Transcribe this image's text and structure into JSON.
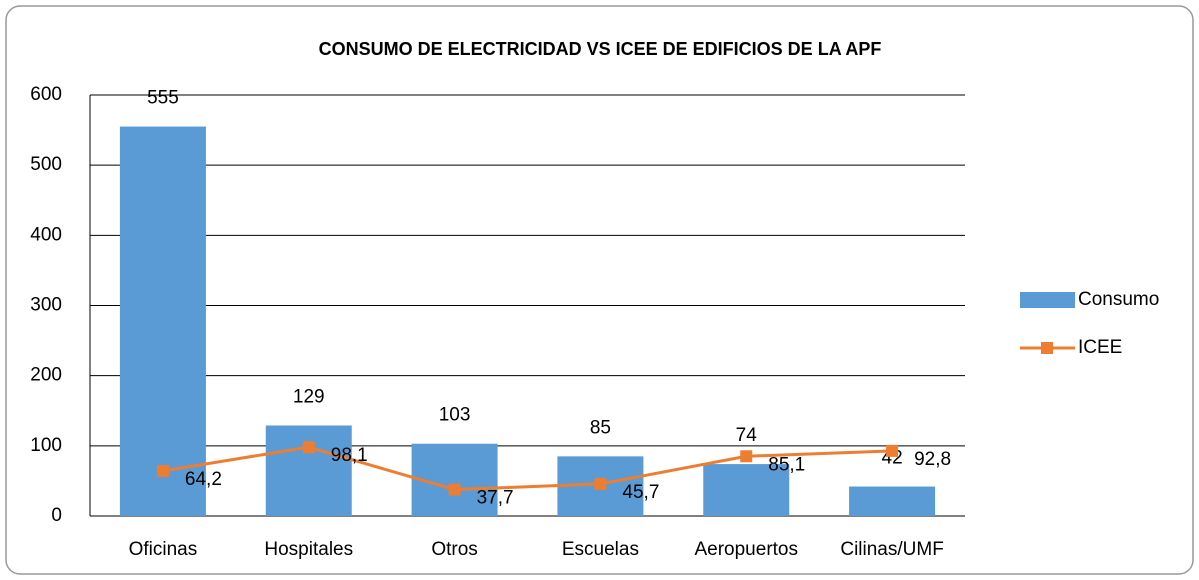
{
  "chart_data": {
    "type": "bar",
    "title": "CONSUMO DE ELECTRICIDAD VS ICEE DE EDIFICIOS DE LA APF",
    "categories": [
      "Oficinas",
      "Hospitales",
      "Otros",
      "Escuelas",
      "Aeropuertos",
      "Cilinas/UMF"
    ],
    "series": [
      {
        "name": "Consumo",
        "type": "bar",
        "color": "#5b9bd5",
        "values": [
          555,
          129,
          103,
          85,
          74,
          42
        ]
      },
      {
        "name": "ICEE",
        "type": "line",
        "color": "#ed7d31",
        "values": [
          64.2,
          98.1,
          37.7,
          45.7,
          85.1,
          92.8
        ],
        "value_labels": [
          "64,2",
          "98,1",
          "37,7",
          "45,7",
          "85,1",
          "92,8"
        ]
      }
    ],
    "ylim": [
      0,
      600
    ],
    "yticks": [
      0,
      100,
      200,
      300,
      400,
      500,
      600
    ],
    "grid": true,
    "legend": "right"
  }
}
